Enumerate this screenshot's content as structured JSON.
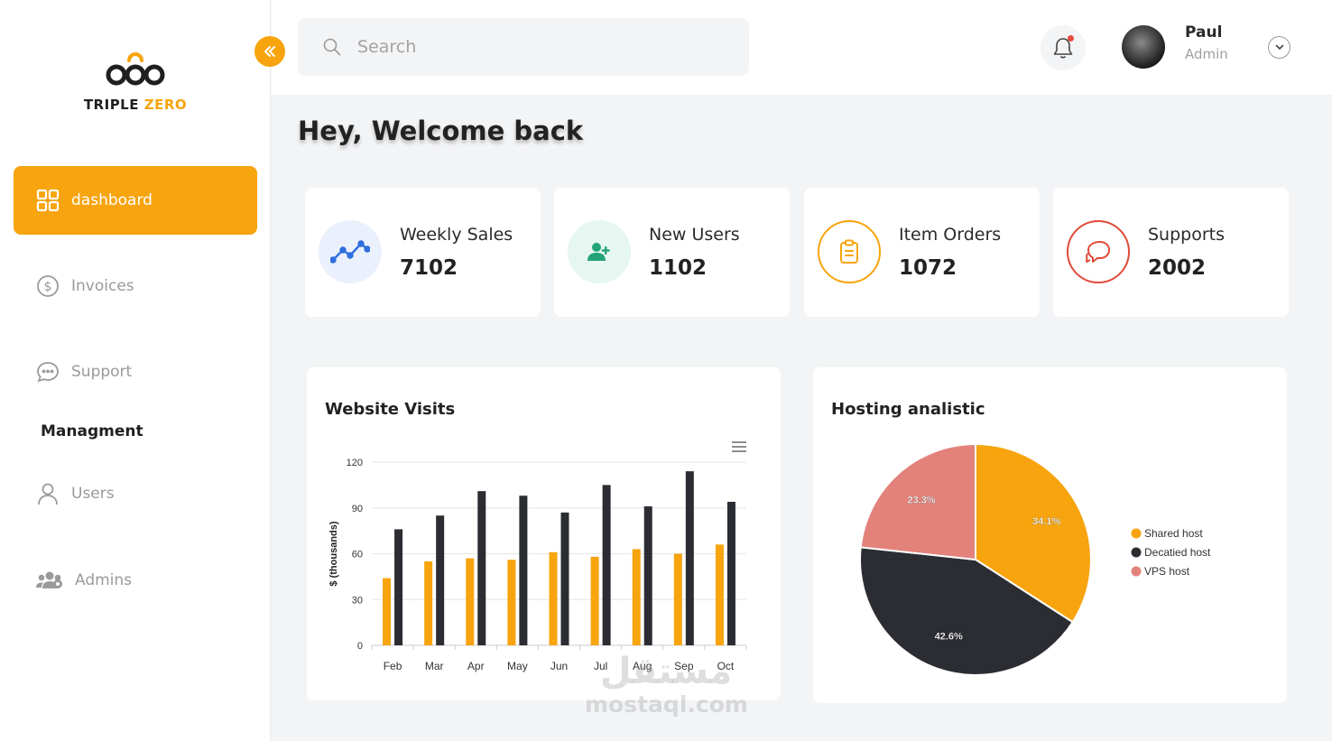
{
  "brand": {
    "name_part1": "TRIPLE ",
    "name_part2": "ZERO",
    "accent": "#f7a40e"
  },
  "sidebar": {
    "items": [
      {
        "label": "dashboard",
        "icon": "grid-icon",
        "active": true
      },
      {
        "label": "Invoices",
        "icon": "dollar-circle-icon"
      },
      {
        "label": "Support",
        "icon": "chat-bubble-icon"
      }
    ],
    "section_title": "Managment",
    "management_items": [
      {
        "label": "Users",
        "icon": "user-icon"
      },
      {
        "label": "Admins",
        "icon": "users-group-icon"
      }
    ]
  },
  "header": {
    "search_placeholder": "Search",
    "notification_icon": "bell-icon",
    "user": {
      "name": "Paul",
      "role": "Admin"
    }
  },
  "main": {
    "welcome": "Hey, Welcome back",
    "stats": [
      {
        "label": "Weekly Sales",
        "value": "7102",
        "icon": "trend-line-icon",
        "color": "#2f6fde",
        "bg": "#eaf1fc"
      },
      {
        "label": "New Users",
        "value": "1102",
        "icon": "user-plus-icon",
        "color": "#22a37a",
        "bg": "#e6f6f0"
      },
      {
        "label": "Item Orders",
        "value": "1072",
        "icon": "clipboard-icon",
        "color": "#f7a40e",
        "bg": "#ffffff"
      },
      {
        "label": "Supports",
        "value": "2002",
        "icon": "chat-icon",
        "color": "#e04a3a",
        "bg": "#ffffff"
      }
    ]
  },
  "chart_data": [
    {
      "type": "bar",
      "title": "Website Visits",
      "ylabel": "$ (thousands)",
      "xlabel": "",
      "categories": [
        "Feb",
        "Mar",
        "Apr",
        "May",
        "Jun",
        "Jul",
        "Aug",
        "Sep",
        "Oct"
      ],
      "series": [
        {
          "values": [
            44,
            55,
            57,
            56,
            61,
            58,
            63,
            60,
            66
          ],
          "color": "#f7a40e"
        },
        {
          "values": [
            76,
            85,
            101,
            98,
            87,
            105,
            91,
            114,
            94
          ],
          "color": "#2b2d33"
        }
      ],
      "ylim": [
        0,
        120
      ],
      "yticks": [
        0,
        30,
        60,
        90,
        120
      ],
      "grid": true,
      "menu_icon": "hamburger-menu-icon"
    },
    {
      "type": "pie",
      "title": "Hosting analistic",
      "slices": [
        {
          "label": "Shared host",
          "value": 34.1,
          "text": "34.1%",
          "color": "#f7a40e"
        },
        {
          "label": "Decatied host",
          "value": 42.6,
          "text": "42.6%",
          "color": "#2b2d33"
        },
        {
          "label": "VPS host",
          "value": 23.3,
          "text": "23.3%",
          "color": "#e2827b"
        }
      ],
      "legend": "right"
    }
  ],
  "watermark": {
    "line1": "مستقل",
    "line2": "mostaql.com"
  }
}
